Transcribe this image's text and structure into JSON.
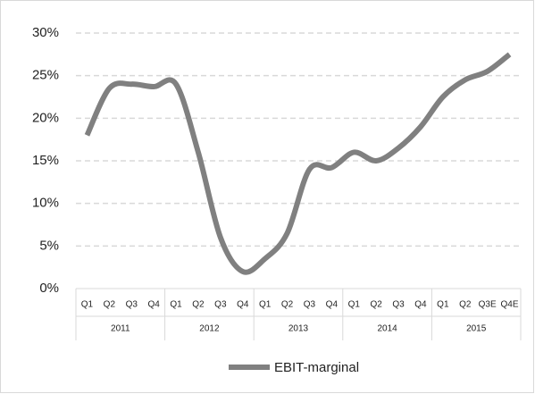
{
  "chart_data": {
    "type": "line",
    "categories": [
      "Q1",
      "Q2",
      "Q3",
      "Q4",
      "Q1",
      "Q2",
      "Q3",
      "Q4",
      "Q1",
      "Q2",
      "Q3",
      "Q4",
      "Q1",
      "Q2",
      "Q3",
      "Q4",
      "Q1",
      "Q2",
      "Q3E",
      "Q4E"
    ],
    "groups": [
      "2011",
      "2012",
      "2013",
      "2014",
      "2015"
    ],
    "series": [
      {
        "name": "EBIT-marginal",
        "color": "#808080",
        "values": [
          18,
          23.5,
          24,
          23.7,
          24,
          16,
          6,
          2,
          3.5,
          6.5,
          14,
          14.2,
          16,
          15,
          16.5,
          19,
          22.5,
          24.5,
          25.5,
          27.5
        ]
      }
    ],
    "ylim": [
      0,
      30
    ],
    "yticks": [
      {
        "value": 0,
        "label": "0%"
      },
      {
        "value": 5,
        "label": "5%"
      },
      {
        "value": 10,
        "label": "10%"
      },
      {
        "value": 15,
        "label": "15%"
      },
      {
        "value": 20,
        "label": "20%"
      },
      {
        "value": 25,
        "label": "25%"
      },
      {
        "value": 30,
        "label": "30%"
      }
    ],
    "grid": true,
    "legend": "bottom"
  }
}
